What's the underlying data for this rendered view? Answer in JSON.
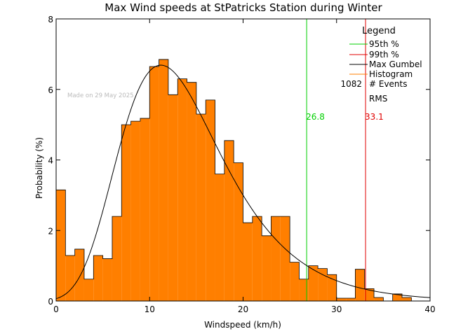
{
  "chart_data": {
    "type": "bar",
    "title": "Max Wind speeds at StPatricks Station during Winter",
    "xlabel": "Windspeed (km/h)",
    "ylabel": "Probability  (%)",
    "xlim": [
      0,
      40
    ],
    "ylim": [
      0,
      8
    ],
    "xticks": [
      0,
      10,
      20,
      30,
      40
    ],
    "yticks": [
      0,
      2,
      4,
      6,
      8
    ],
    "watermark": "Made on 29 May 2025",
    "bin_width": 1,
    "histogram": {
      "name": "Histogram",
      "color": "#ff7f00",
      "bins_start": [
        0,
        1,
        2,
        3,
        4,
        5,
        6,
        7,
        8,
        9,
        10,
        11,
        12,
        13,
        14,
        15,
        16,
        17,
        18,
        19,
        20,
        21,
        22,
        23,
        24,
        25,
        26,
        27,
        28,
        29,
        30,
        31,
        32,
        33,
        34,
        35,
        36,
        37,
        38,
        39
      ],
      "values": [
        3.15,
        1.29,
        1.47,
        0.62,
        1.29,
        1.2,
        2.4,
        5.0,
        5.1,
        5.18,
        6.65,
        6.85,
        5.85,
        6.3,
        6.2,
        5.3,
        5.7,
        3.6,
        4.55,
        3.92,
        2.22,
        2.4,
        1.85,
        2.4,
        2.4,
        1.1,
        0.62,
        1.0,
        0.92,
        0.75,
        0.08,
        0.08,
        0.9,
        0.35,
        0.1,
        0.0,
        0.2,
        0.1,
        0.0,
        0.0
      ]
    },
    "gumbel": {
      "name": "Max Gumbel",
      "color": "#000000",
      "mu": 11.2,
      "beta": 5.5
    },
    "percentiles": [
      {
        "name": "95th %",
        "value": 26.8,
        "label": "26.8",
        "color": "#00d000"
      },
      {
        "name": "99th %",
        "value": 33.1,
        "label": "33.1",
        "color": "#e00000"
      }
    ],
    "legend": {
      "title": "Legend",
      "position": "top-right",
      "events_count": "1082",
      "events_label": "# Events",
      "rms_label": "RMS"
    }
  }
}
